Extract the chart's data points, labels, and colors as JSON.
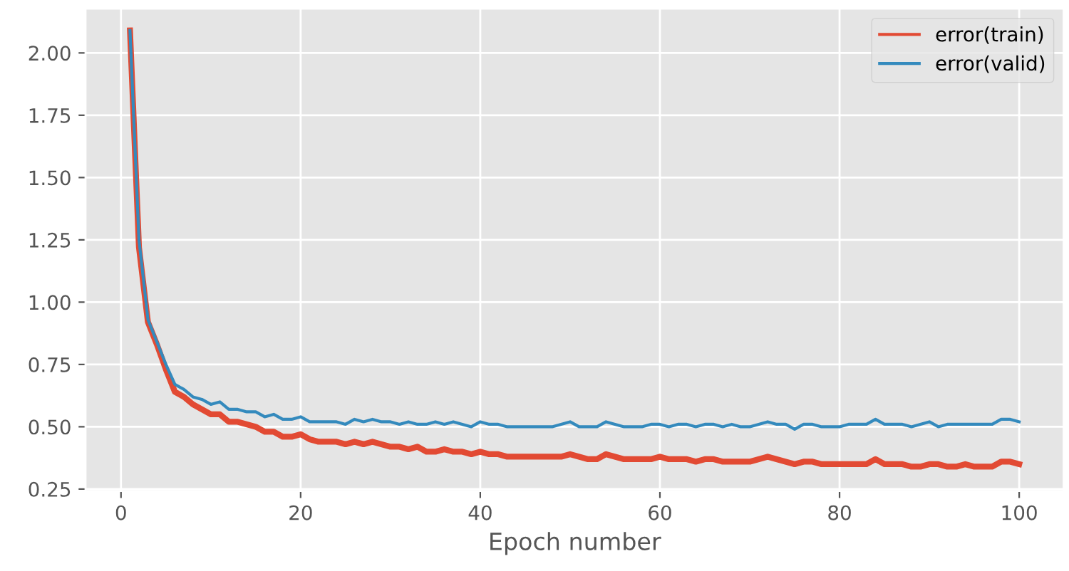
{
  "chart_data": {
    "type": "line",
    "xlabel": "Epoch number",
    "xlim": [
      -3.95,
      104.95
    ],
    "ylim": [
      0.242,
      2.178
    ],
    "xticks": [
      0,
      20,
      40,
      60,
      80,
      100
    ],
    "yticks": [
      {
        "value": 0.25,
        "label": "0.25"
      },
      {
        "value": 0.5,
        "label": "0.50"
      },
      {
        "value": 0.75,
        "label": "0.75"
      },
      {
        "value": 1.0,
        "label": "1.00"
      },
      {
        "value": 1.25,
        "label": "1.25"
      },
      {
        "value": 1.5,
        "label": "1.50"
      },
      {
        "value": 1.75,
        "label": "1.75"
      },
      {
        "value": 2.0,
        "label": "2.00"
      }
    ],
    "grid": true,
    "legend": "top right",
    "line_style": "solid",
    "marker": "none",
    "x": [
      1,
      2,
      3,
      4,
      5,
      6,
      7,
      8,
      9,
      10,
      11,
      12,
      13,
      14,
      15,
      16,
      17,
      18,
      19,
      20,
      21,
      22,
      23,
      24,
      25,
      26,
      27,
      28,
      29,
      30,
      31,
      32,
      33,
      34,
      35,
      36,
      37,
      38,
      39,
      40,
      41,
      42,
      43,
      44,
      45,
      46,
      47,
      48,
      49,
      50,
      51,
      52,
      53,
      54,
      55,
      56,
      57,
      58,
      59,
      60,
      61,
      62,
      63,
      64,
      65,
      66,
      67,
      68,
      69,
      70,
      71,
      72,
      73,
      74,
      75,
      76,
      77,
      78,
      79,
      80,
      81,
      82,
      83,
      84,
      85,
      86,
      87,
      88,
      89,
      90,
      91,
      92,
      93,
      94,
      95,
      96,
      97,
      98,
      99,
      100
    ],
    "series": [
      {
        "name": "error(train)",
        "color": "#e24a33",
        "values": [
          2.09,
          1.22,
          0.92,
          0.83,
          0.73,
          0.64,
          0.62,
          0.59,
          0.57,
          0.55,
          0.55,
          0.52,
          0.52,
          0.51,
          0.5,
          0.48,
          0.48,
          0.46,
          0.46,
          0.47,
          0.45,
          0.44,
          0.44,
          0.44,
          0.43,
          0.44,
          0.43,
          0.44,
          0.43,
          0.42,
          0.42,
          0.41,
          0.42,
          0.4,
          0.4,
          0.41,
          0.4,
          0.4,
          0.39,
          0.4,
          0.39,
          0.39,
          0.38,
          0.38,
          0.38,
          0.38,
          0.38,
          0.38,
          0.38,
          0.39,
          0.38,
          0.37,
          0.37,
          0.39,
          0.38,
          0.37,
          0.37,
          0.37,
          0.37,
          0.38,
          0.37,
          0.37,
          0.37,
          0.36,
          0.37,
          0.37,
          0.36,
          0.36,
          0.36,
          0.36,
          0.37,
          0.38,
          0.37,
          0.36,
          0.35,
          0.36,
          0.36,
          0.35,
          0.35,
          0.35,
          0.35,
          0.35,
          0.35,
          0.37,
          0.35,
          0.35,
          0.35,
          0.34,
          0.34,
          0.35,
          0.35,
          0.34,
          0.34,
          0.35,
          0.34,
          0.34,
          0.34,
          0.36,
          0.36,
          0.35
        ]
      },
      {
        "name": "error(valid)",
        "color": "#348abd",
        "values": [
          2.09,
          1.25,
          0.93,
          0.84,
          0.75,
          0.67,
          0.65,
          0.62,
          0.61,
          0.59,
          0.6,
          0.57,
          0.57,
          0.56,
          0.56,
          0.54,
          0.55,
          0.53,
          0.53,
          0.54,
          0.52,
          0.52,
          0.52,
          0.52,
          0.51,
          0.53,
          0.52,
          0.53,
          0.52,
          0.52,
          0.51,
          0.52,
          0.51,
          0.51,
          0.52,
          0.51,
          0.52,
          0.51,
          0.5,
          0.52,
          0.51,
          0.51,
          0.5,
          0.5,
          0.5,
          0.5,
          0.5,
          0.5,
          0.51,
          0.52,
          0.5,
          0.5,
          0.5,
          0.52,
          0.51,
          0.5,
          0.5,
          0.5,
          0.51,
          0.51,
          0.5,
          0.51,
          0.51,
          0.5,
          0.51,
          0.51,
          0.5,
          0.51,
          0.5,
          0.5,
          0.51,
          0.52,
          0.51,
          0.51,
          0.49,
          0.51,
          0.51,
          0.5,
          0.5,
          0.5,
          0.51,
          0.51,
          0.51,
          0.53,
          0.51,
          0.51,
          0.51,
          0.5,
          0.51,
          0.52,
          0.5,
          0.51,
          0.51,
          0.51,
          0.51,
          0.51,
          0.51,
          0.53,
          0.53,
          0.52
        ]
      }
    ]
  }
}
